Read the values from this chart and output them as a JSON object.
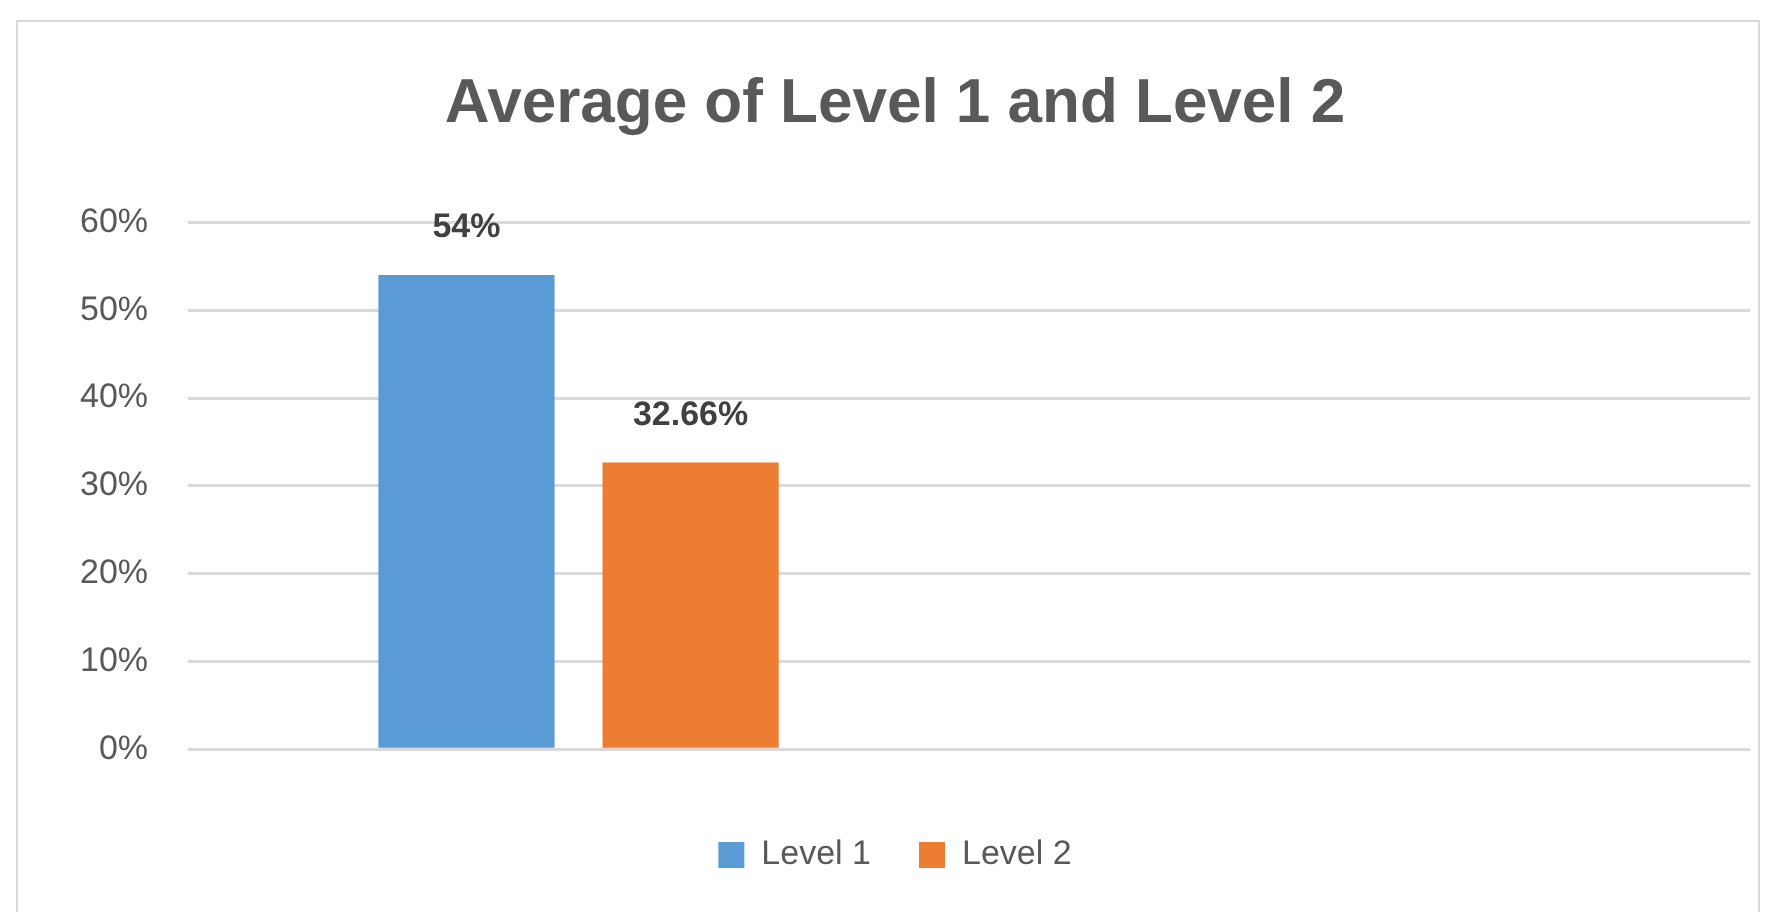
{
  "chart_data": {
    "type": "bar",
    "title": "Average of Level 1 and Level 2",
    "categories": [
      null,
      null
    ],
    "series": [
      {
        "name": "Level 1",
        "color": "#5b9bd5",
        "values": [
          54,
          null
        ],
        "value_labels": [
          "54%",
          null
        ]
      },
      {
        "name": "Level 2",
        "color": "#ed7d31",
        "values": [
          32.66,
          null
        ],
        "value_labels": [
          "32.66%",
          null
        ]
      }
    ],
    "ylim": [
      0,
      60
    ],
    "yticks": [
      {
        "value": 0,
        "label": "0%"
      },
      {
        "value": 10,
        "label": "10%"
      },
      {
        "value": 20,
        "label": "20%"
      },
      {
        "value": 30,
        "label": "30%"
      },
      {
        "value": 40,
        "label": "40%"
      },
      {
        "value": 50,
        "label": "50%"
      },
      {
        "value": 60,
        "label": "60%"
      }
    ],
    "grid": "y",
    "legend": "bottom"
  }
}
